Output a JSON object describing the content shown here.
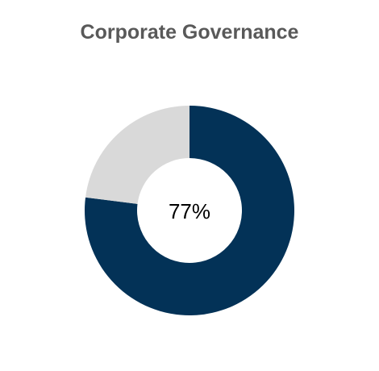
{
  "chart_data": {
    "type": "pie",
    "title": "Corporate Governance",
    "slices": [
      {
        "label": "",
        "value": 77,
        "color": "#033257"
      },
      {
        "label": "",
        "value": 23,
        "color": "#d9d9d9"
      }
    ],
    "center_label": "77%"
  }
}
